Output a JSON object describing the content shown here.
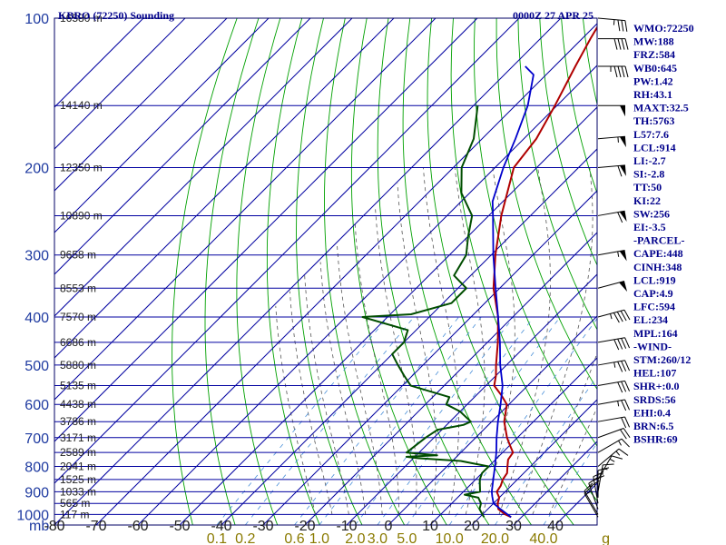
{
  "header": {
    "left": "KBRO (72250) Sounding",
    "right": "0000Z 27 APR 25"
  },
  "indices": [
    "WMO:72250",
    "MW:188",
    "FRZ:584",
    "WB0:645",
    "PW:1.42",
    "RH:43.1",
    "MAXT:32.5",
    "TH:5763",
    "L57:7.6",
    "LCL:914",
    "LI:-2.7",
    "SI:-2.8",
    "TT:50",
    "KI:22",
    "SW:256",
    "EI:-3.5",
    "-PARCEL-",
    "CAPE:448",
    "CINH:348",
    "LCL:919",
    "CAP:4.9",
    "LFC:594",
    "EL:234",
    "MPL:164",
    "-WIND-",
    "STM:260/12",
    "HEL:107",
    "SHR+:0.0",
    "SRDS:56",
    "EHI:0.4",
    "BRN:6.5",
    "BSHR:69"
  ],
  "colors": {
    "isobar": "#0000a0",
    "isotherm": "#0000a0",
    "dry_adiabat": "#00a000",
    "moist_adiabat": "#555555",
    "mixing_ratio": "#4a90d9",
    "temperature": "#b00000",
    "dewpoint": "#004d00",
    "parcel": "#0000cc",
    "wind": "#000000"
  },
  "chart_data": {
    "type": "line",
    "title": "KBRO (72250) Sounding",
    "subtitle": "0000Z 27 APR 25",
    "pressure_unit_label": "mb",
    "log_pressure_axis": true,
    "pressure_range": [
      1050,
      100
    ],
    "temperature_range_at_base": [
      -80,
      50
    ],
    "pressure_ticks": [
      100,
      200,
      300,
      400,
      500,
      600,
      700,
      800,
      900,
      1000
    ],
    "temperature_ticks": [
      -80,
      -70,
      -60,
      -50,
      -40,
      -30,
      -20,
      -10,
      0,
      10,
      20,
      30,
      40
    ],
    "height_labels": [
      {
        "p": 100,
        "label": "16580 m"
      },
      {
        "p": 150,
        "label": "14140 m"
      },
      {
        "p": 200,
        "label": "12350 m"
      },
      {
        "p": 250,
        "label": "10890 m"
      },
      {
        "p": 300,
        "label": "9658 m"
      },
      {
        "p": 350,
        "label": "8553 m"
      },
      {
        "p": 400,
        "label": "7570 m"
      },
      {
        "p": 450,
        "label": "6686 m"
      },
      {
        "p": 500,
        "label": "5880 m"
      },
      {
        "p": 550,
        "label": "5135 m"
      },
      {
        "p": 600,
        "label": "4438 m"
      },
      {
        "p": 650,
        "label": "3786 m"
      },
      {
        "p": 700,
        "label": "3171 m"
      },
      {
        "p": 750,
        "label": "2589 m"
      },
      {
        "p": 800,
        "label": "2041 m"
      },
      {
        "p": 850,
        "label": "1525 m"
      },
      {
        "p": 900,
        "label": "1033 m"
      },
      {
        "p": 950,
        "label": "565 m"
      },
      {
        "p": 1000,
        "label": "117 m"
      }
    ],
    "mixing_ratio_labels": [
      {
        "w": 0.1,
        "label": "0.1"
      },
      {
        "w": 0.2,
        "label": "0.2"
      },
      {
        "w": 0.6,
        "label": "0.6"
      },
      {
        "w": 1.0,
        "label": "1.0"
      },
      {
        "w": 2.0,
        "label": "2.0"
      },
      {
        "w": 3.0,
        "label": "3.0"
      },
      {
        "w": 5.0,
        "label": "5.0"
      },
      {
        "w": 10.0,
        "label": "10.0"
      },
      {
        "w": 20.0,
        "label": "20.0"
      },
      {
        "w": 40.0,
        "label": "40.0"
      }
    ],
    "mixing_ratio_unit": "g",
    "series": [
      {
        "key": "temperature",
        "points": [
          [
            1012,
            27.5
          ],
          [
            1000,
            25.5
          ],
          [
            975,
            22.5
          ],
          [
            950,
            21
          ],
          [
            925,
            20
          ],
          [
            900,
            18
          ],
          [
            875,
            17.5
          ],
          [
            850,
            16.5
          ],
          [
            825,
            16
          ],
          [
            800,
            14.5
          ],
          [
            775,
            13
          ],
          [
            750,
            12.5
          ],
          [
            725,
            10
          ],
          [
            700,
            7.5
          ],
          [
            650,
            3
          ],
          [
            600,
            -0.5
          ],
          [
            575,
            -4
          ],
          [
            550,
            -8
          ],
          [
            525,
            -10
          ],
          [
            500,
            -12.5
          ],
          [
            450,
            -17.5
          ],
          [
            400,
            -23.5
          ],
          [
            350,
            -31.5
          ],
          [
            300,
            -39
          ],
          [
            250,
            -47
          ],
          [
            200,
            -55.5
          ],
          [
            175,
            -57
          ],
          [
            150,
            -60.5
          ],
          [
            125,
            -65
          ],
          [
            110,
            -68
          ],
          [
            100,
            -70
          ]
        ]
      },
      {
        "key": "dewpoint",
        "points": [
          [
            1012,
            21
          ],
          [
            1000,
            20
          ],
          [
            975,
            18
          ],
          [
            950,
            17
          ],
          [
            925,
            15
          ],
          [
            912,
            11
          ],
          [
            900,
            14
          ],
          [
            875,
            12.5
          ],
          [
            850,
            11
          ],
          [
            825,
            10
          ],
          [
            800,
            10
          ],
          [
            780,
            2
          ],
          [
            770,
            -9
          ],
          [
            765,
            -12
          ],
          [
            760,
            -5
          ],
          [
            750,
            -13
          ],
          [
            700,
            -12
          ],
          [
            675,
            -11
          ],
          [
            660,
            -6
          ],
          [
            650,
            -5
          ],
          [
            620,
            -10
          ],
          [
            600,
            -15
          ],
          [
            580,
            -16
          ],
          [
            550,
            -28
          ],
          [
            525,
            -32
          ],
          [
            500,
            -36
          ],
          [
            475,
            -40
          ],
          [
            450,
            -40
          ],
          [
            425,
            -42
          ],
          [
            400,
            -56
          ],
          [
            395,
            -45
          ],
          [
            375,
            -38
          ],
          [
            350,
            -38
          ],
          [
            330,
            -44
          ],
          [
            300,
            -46
          ],
          [
            275,
            -50
          ],
          [
            250,
            -54
          ],
          [
            225,
            -62
          ],
          [
            200,
            -68
          ],
          [
            175,
            -72
          ],
          [
            150,
            -79
          ]
        ]
      },
      {
        "key": "parcel",
        "points": [
          [
            1012,
            27.5
          ],
          [
            975,
            23
          ],
          [
            950,
            20
          ],
          [
            919,
            18
          ],
          [
            900,
            16.8
          ],
          [
            850,
            14.2
          ],
          [
            800,
            11.5
          ],
          [
            750,
            8.5
          ],
          [
            700,
            5
          ],
          [
            650,
            1.5
          ],
          [
            600,
            -2
          ],
          [
            550,
            -6
          ],
          [
            500,
            -11.5
          ],
          [
            450,
            -17
          ],
          [
            400,
            -23.5
          ],
          [
            350,
            -31
          ],
          [
            300,
            -39.5
          ],
          [
            250,
            -49
          ],
          [
            234,
            -52.5
          ],
          [
            200,
            -58
          ],
          [
            175,
            -62
          ],
          [
            150,
            -67
          ],
          [
            130,
            -73
          ],
          [
            125,
            -77
          ]
        ]
      }
    ],
    "winds": [
      {
        "p": 1012,
        "dir": 150,
        "spd": 10
      },
      {
        "p": 1000,
        "dir": 150,
        "spd": 15
      },
      {
        "p": 975,
        "dir": 160,
        "spd": 20
      },
      {
        "p": 950,
        "dir": 170,
        "spd": 20
      },
      {
        "p": 925,
        "dir": 180,
        "spd": 15
      },
      {
        "p": 900,
        "dir": 190,
        "spd": 15
      },
      {
        "p": 850,
        "dir": 210,
        "spd": 15
      },
      {
        "p": 800,
        "dir": 230,
        "spd": 15
      },
      {
        "p": 750,
        "dir": 240,
        "spd": 15
      },
      {
        "p": 700,
        "dir": 250,
        "spd": 20
      },
      {
        "p": 650,
        "dir": 260,
        "spd": 20
      },
      {
        "p": 600,
        "dir": 260,
        "spd": 25
      },
      {
        "p": 550,
        "dir": 260,
        "spd": 30
      },
      {
        "p": 500,
        "dir": 260,
        "spd": 35
      },
      {
        "p": 450,
        "dir": 260,
        "spd": 40
      },
      {
        "p": 400,
        "dir": 255,
        "spd": 45
      },
      {
        "p": 350,
        "dir": 255,
        "spd": 50
      },
      {
        "p": 300,
        "dir": 260,
        "spd": 55
      },
      {
        "p": 250,
        "dir": 260,
        "spd": 60
      },
      {
        "p": 200,
        "dir": 265,
        "spd": 60
      },
      {
        "p": 175,
        "dir": 265,
        "spd": 55
      },
      {
        "p": 150,
        "dir": 270,
        "spd": 50
      },
      {
        "p": 125,
        "dir": 270,
        "spd": 45
      },
      {
        "p": 110,
        "dir": 270,
        "spd": 40
      },
      {
        "p": 100,
        "dir": 275,
        "spd": 35
      }
    ]
  }
}
